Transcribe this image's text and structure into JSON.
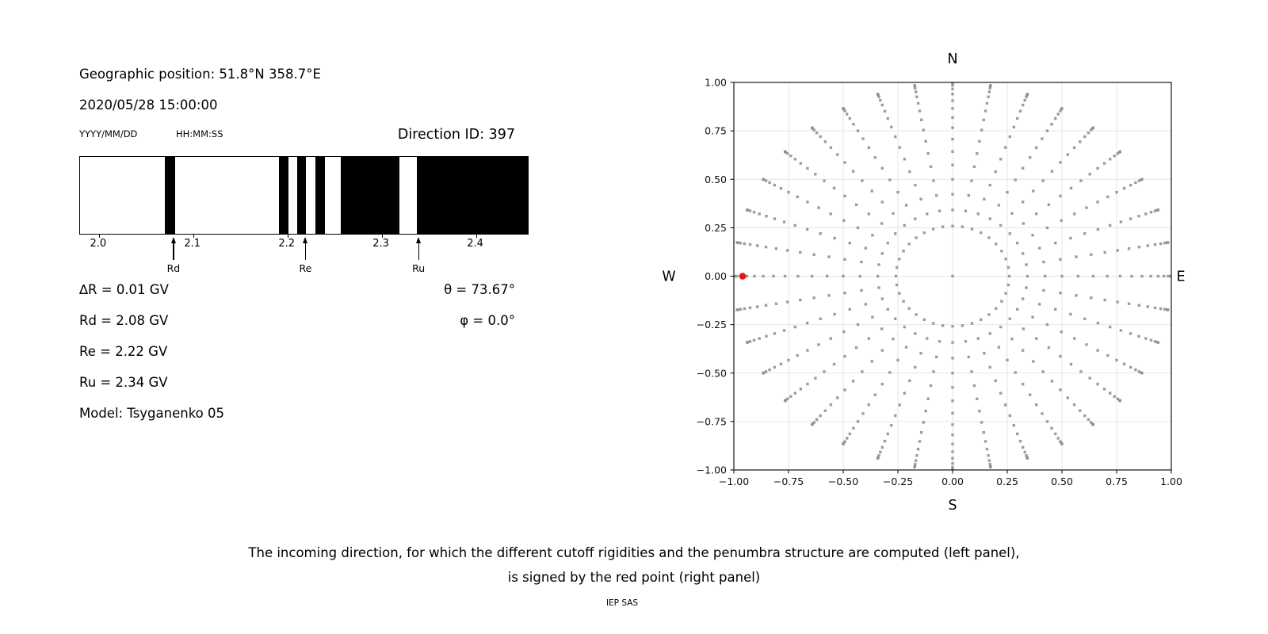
{
  "left_panel": {
    "geographic_position": "Geographic position: 51.8°N 358.7°E",
    "datetime": "2020/05/28 15:00:00",
    "date_format_label": "YYYY/MM/DD",
    "time_format_label": "HH:MM:SS",
    "direction_id_label": "Direction ID: 397",
    "delta_r_label": "∆R = 0.01 GV",
    "rd_label": "Rd = 2.08 GV",
    "re_label": "Re = 2.22 GV",
    "ru_label": "Ru = 2.34 GV",
    "model_label": "Model: Tsyganenko 05",
    "theta_label": "θ = 73.67°",
    "phi_label": "φ = 0.0°"
  },
  "caption": {
    "line1": "The incoming direction, for which the different cutoff rigidities and the penumbra structure are computed (left panel),",
    "line2": "is signed by the red point (right panel)",
    "credit": "IEP SAS"
  },
  "chart_data": [
    {
      "type": "bar",
      "subtype": "penumbra-barcode",
      "description": "Black bands mark forbidden rigidity intervals (penumbra structure), white allowed",
      "x_axis": {
        "unit": "GV",
        "domain": [
          1.98,
          2.455
        ],
        "ticks": [
          2.0,
          2.1,
          2.2,
          2.3,
          2.4
        ]
      },
      "forbidden_bands_gv": [
        [
          2.07,
          2.081
        ],
        [
          2.191,
          2.201
        ],
        [
          2.21,
          2.22
        ],
        [
          2.23,
          2.24
        ],
        [
          2.257,
          2.319
        ],
        [
          2.337,
          2.455
        ]
      ],
      "markers": [
        {
          "label": "Rd",
          "gv": 2.08
        },
        {
          "label": "Re",
          "gv": 2.22
        },
        {
          "label": "Ru",
          "gv": 2.34
        }
      ],
      "band_color": "#000000"
    },
    {
      "type": "scatter",
      "description": "Grid of incoming directions; radius r = sin(zenith), azimuth spokes every 10 deg; red point marks direction ID 397",
      "xlim": [
        -1.0,
        1.0
      ],
      "ylim": [
        -1.0,
        1.0
      ],
      "ticks": [
        -1.0,
        -0.75,
        -0.5,
        -0.25,
        0.0,
        0.25,
        0.5,
        0.75,
        1.0
      ],
      "grid": true,
      "grid_color": "#e6e6e6",
      "compass_labels": {
        "top": "N",
        "bottom": "S",
        "left": "W",
        "right": "E"
      },
      "series": {
        "name": "direction-grid",
        "dot_color": "#8c8c8c",
        "azimuths_deg": [
          0,
          10,
          20,
          30,
          40,
          50,
          60,
          70,
          80,
          90,
          100,
          110,
          120,
          130,
          140,
          150,
          160,
          170,
          180,
          190,
          200,
          210,
          220,
          230,
          240,
          250,
          260,
          270,
          280,
          290,
          300,
          310,
          320,
          330,
          340,
          350
        ],
        "spoke_radii": [
          0.342,
          0.423,
          0.5,
          0.574,
          0.643,
          0.707,
          0.766,
          0.819,
          0.866,
          0.906,
          0.94,
          0.966,
          0.985,
          0.996,
          1.0
        ],
        "ring_radius": 0.259,
        "center_point": [
          0.0,
          0.0
        ]
      },
      "red_point": {
        "x": -0.96,
        "y": 0.0,
        "color": "#ee1111"
      }
    }
  ]
}
